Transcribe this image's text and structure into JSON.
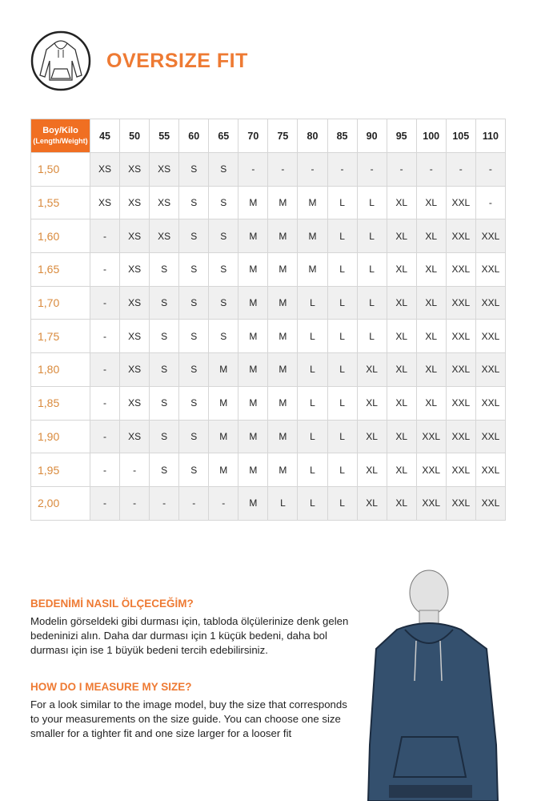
{
  "title": "OVERSIZE FIT",
  "logo_icon": "hoodie-icon",
  "table": {
    "corner": {
      "line1": "Boy/Kilo",
      "line2": "(Length/Weight)"
    },
    "weights": [
      "45",
      "50",
      "55",
      "60",
      "65",
      "70",
      "75",
      "80",
      "85",
      "90",
      "95",
      "100",
      "105",
      "110"
    ],
    "rows": [
      {
        "height": "1,50",
        "sizes": [
          "XS",
          "XS",
          "XS",
          "S",
          "S",
          "-",
          "-",
          "-",
          "-",
          "-",
          "-",
          "-",
          "-",
          "-"
        ]
      },
      {
        "height": "1,55",
        "sizes": [
          "XS",
          "XS",
          "XS",
          "S",
          "S",
          "M",
          "M",
          "M",
          "L",
          "L",
          "XL",
          "XL",
          "XXL",
          "-"
        ]
      },
      {
        "height": "1,60",
        "sizes": [
          "-",
          "XS",
          "XS",
          "S",
          "S",
          "M",
          "M",
          "M",
          "L",
          "L",
          "XL",
          "XL",
          "XXL",
          "XXL"
        ]
      },
      {
        "height": "1,65",
        "sizes": [
          "-",
          "XS",
          "S",
          "S",
          "S",
          "M",
          "M",
          "M",
          "L",
          "L",
          "XL",
          "XL",
          "XXL",
          "XXL"
        ]
      },
      {
        "height": "1,70",
        "sizes": [
          "-",
          "XS",
          "S",
          "S",
          "S",
          "M",
          "M",
          "L",
          "L",
          "L",
          "XL",
          "XL",
          "XXL",
          "XXL"
        ]
      },
      {
        "height": "1,75",
        "sizes": [
          "-",
          "XS",
          "S",
          "S",
          "S",
          "M",
          "M",
          "L",
          "L",
          "L",
          "XL",
          "XL",
          "XXL",
          "XXL"
        ]
      },
      {
        "height": "1,80",
        "sizes": [
          "-",
          "XS",
          "S",
          "S",
          "M",
          "M",
          "M",
          "L",
          "L",
          "XL",
          "XL",
          "XL",
          "XXL",
          "XXL"
        ]
      },
      {
        "height": "1,85",
        "sizes": [
          "-",
          "XS",
          "S",
          "S",
          "M",
          "M",
          "M",
          "L",
          "L",
          "XL",
          "XL",
          "XL",
          "XXL",
          "XXL"
        ]
      },
      {
        "height": "1,90",
        "sizes": [
          "-",
          "XS",
          "S",
          "S",
          "M",
          "M",
          "M",
          "L",
          "L",
          "XL",
          "XL",
          "XXL",
          "XXL",
          "XXL"
        ]
      },
      {
        "height": "1,95",
        "sizes": [
          "-",
          "-",
          "S",
          "S",
          "M",
          "M",
          "M",
          "L",
          "L",
          "XL",
          "XL",
          "XXL",
          "XXL",
          "XXL"
        ]
      },
      {
        "height": "2,00",
        "sizes": [
          "-",
          "-",
          "-",
          "-",
          "-",
          "M",
          "L",
          "L",
          "L",
          "XL",
          "XL",
          "XXL",
          "XXL",
          "XXL"
        ]
      }
    ]
  },
  "tr": {
    "heading": "BEDENİMİ NASIL ÖLÇECEĞİM?",
    "body": "Modelin görseldeki gibi durması için, tabloda ölçülerinize denk gelen bedeninizi alın. Daha dar durması için 1 küçük bedeni, daha bol durması için ise 1 büyük bedeni tercih edebilirsiniz."
  },
  "en": {
    "heading": "HOW DO I MEASURE MY SIZE?",
    "body": "For a look similar to the image model, buy the size that corresponds to your measurements on the size guide. You can choose one size smaller for a tighter fit and one size larger for a looser fit"
  },
  "colors": {
    "accent": "#ee7a33",
    "hoodie": "#34506e"
  }
}
